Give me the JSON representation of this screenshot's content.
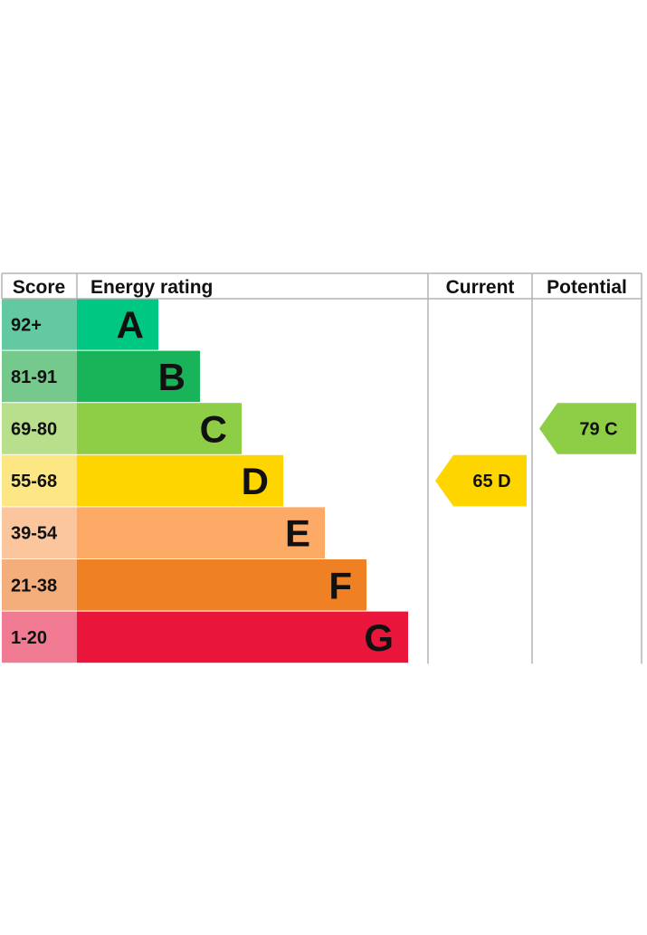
{
  "chart_data": {
    "type": "table",
    "headers": {
      "score": "Score",
      "rating": "Energy rating",
      "current": "Current",
      "potential": "Potential"
    },
    "bands": [
      {
        "letter": "A",
        "range": "92+",
        "color": "#00c781",
        "score_color": "#63c9a0"
      },
      {
        "letter": "B",
        "range": "81-91",
        "color": "#19b459",
        "score_color": "#75c98d"
      },
      {
        "letter": "C",
        "range": "69-80",
        "color": "#8dce46",
        "score_color": "#b7df8c"
      },
      {
        "letter": "D",
        "range": "55-68",
        "color": "#ffd500",
        "score_color": "#fde684"
      },
      {
        "letter": "E",
        "range": "39-54",
        "color": "#fcaa65",
        "score_color": "#fbc69e"
      },
      {
        "letter": "F",
        "range": "21-38",
        "color": "#ef8023",
        "score_color": "#f3ae7b"
      },
      {
        "letter": "G",
        "range": "1-20",
        "color": "#e9153b",
        "score_color": "#f07a91"
      }
    ],
    "current": {
      "score": 65,
      "band": "D",
      "color": "#ffd500"
    },
    "potential": {
      "score": 79,
      "band": "C",
      "color": "#8dce46"
    },
    "grid_color": "#b3b3b3",
    "text_color": "#111111"
  }
}
